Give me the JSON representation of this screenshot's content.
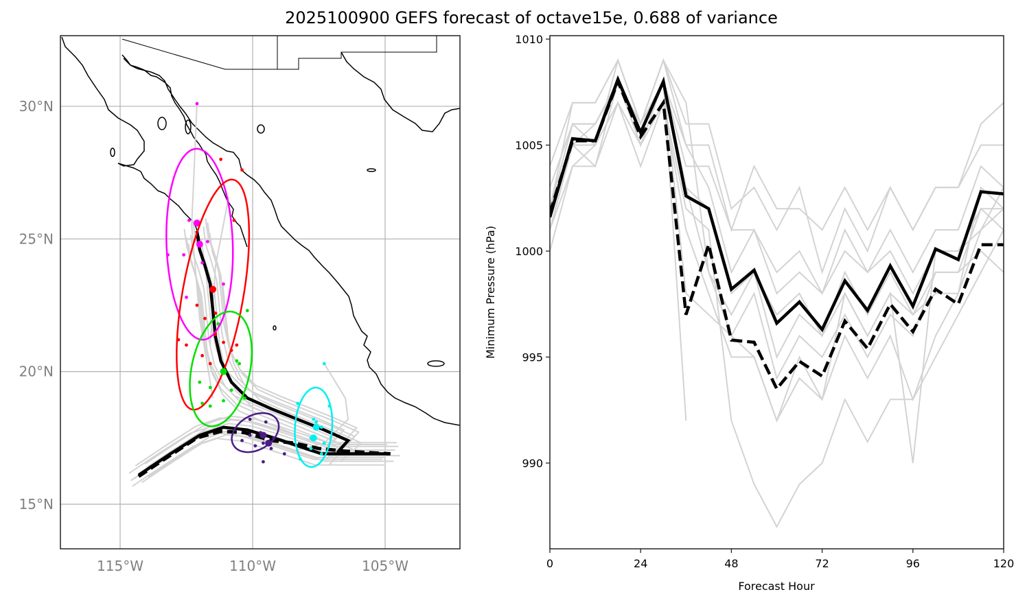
{
  "figure": {
    "title": "2025100900 GEFS forecast of octave15e, 0.688 of variance"
  },
  "colors": {
    "member_track": "#d3d3d3",
    "ensemble_mean": "#000000",
    "cluster_magenta": "#ff00ff",
    "cluster_red": "#ff0000",
    "cluster_green": "#00e000",
    "cluster_purple": "#4b1c86",
    "cluster_cyan": "#00f0f0",
    "gridline": "#b0b0b0",
    "geo_tick_label": "#808080",
    "coastline": "#000000"
  },
  "chart_data": [
    {
      "type": "map",
      "title": "",
      "lon_range": [
        -117.2,
        -102.2
      ],
      "lat_range": [
        13.3,
        32.6
      ],
      "grid": true,
      "lon_ticks": [
        -115,
        -110,
        -105
      ],
      "lon_tick_labels": [
        "115°W",
        "110°W",
        "105°W"
      ],
      "lat_ticks": [
        15,
        20,
        25,
        30
      ],
      "lat_tick_labels": [
        "15°N",
        "20°N",
        "25°N",
        "30°N"
      ],
      "mean_track_solid": [
        [
          -114.3,
          16.1
        ],
        [
          -113.1,
          16.9
        ],
        [
          -112.0,
          17.6
        ],
        [
          -111.1,
          17.9
        ],
        [
          -110.2,
          17.8
        ],
        [
          -109.2,
          17.5
        ],
        [
          -108.3,
          17.2
        ],
        [
          -107.4,
          16.9
        ],
        [
          -106.5,
          16.9
        ],
        [
          -105.7,
          16.9
        ],
        [
          -104.8,
          16.9
        ]
      ],
      "mean_track_dashed": [
        [
          -114.3,
          16.05
        ],
        [
          -113.1,
          16.85
        ],
        [
          -112.1,
          17.5
        ],
        [
          -111.2,
          17.75
        ],
        [
          -110.3,
          17.7
        ],
        [
          -109.3,
          17.4
        ],
        [
          -108.4,
          17.3
        ],
        [
          -107.5,
          17.1
        ],
        [
          -106.5,
          17.0
        ],
        [
          -105.7,
          16.95
        ],
        [
          -104.8,
          16.9
        ]
      ],
      "mean_track_north": [
        [
          -112.1,
          25.3
        ],
        [
          -112.0,
          24.6
        ],
        [
          -111.8,
          24.0
        ],
        [
          -111.6,
          23.3
        ],
        [
          -111.5,
          22.3
        ],
        [
          -111.4,
          21.3
        ],
        [
          -111.2,
          20.4
        ],
        [
          -110.8,
          19.6
        ],
        [
          -110.2,
          19.0
        ],
        [
          -109.3,
          18.6
        ],
        [
          -108.3,
          18.2
        ],
        [
          -107.3,
          17.8
        ],
        [
          -106.4,
          17.4
        ],
        [
          -106.8,
          16.95
        ]
      ],
      "clusters": [
        {
          "name": "magenta",
          "color_key": "cluster_magenta",
          "center": [
            -112.0,
            24.8
          ],
          "semi_axes_deg": [
            1.25,
            3.6
          ],
          "angle_deg": -2,
          "points": [
            [
              -113.2,
              24.4
            ],
            [
              -112.4,
              25.7
            ],
            [
              -111.7,
              24.9
            ],
            [
              -112.6,
              24.4
            ],
            [
              -112.5,
              22.8
            ],
            [
              -111.1,
              23.3
            ],
            [
              -111.9,
              24.1
            ],
            [
              -112.1,
              30.1
            ]
          ],
          "big_points": [
            [
              -112.1,
              25.6
            ],
            [
              -112.0,
              24.8
            ]
          ]
        },
        {
          "name": "red",
          "color_key": "cluster_red",
          "center": [
            -111.5,
            22.9
          ],
          "semi_axes_deg": [
            1.15,
            4.4
          ],
          "angle_deg": 10,
          "points": [
            [
              -111.2,
              28.0
            ],
            [
              -110.4,
              27.6
            ],
            [
              -110.7,
              25.7
            ],
            [
              -111.8,
              22.0
            ],
            [
              -112.1,
              22.5
            ],
            [
              -111.4,
              21.4
            ],
            [
              -111.9,
              20.6
            ],
            [
              -111.1,
              21.1
            ],
            [
              -110.8,
              20.8
            ],
            [
              -110.6,
              21.0
            ],
            [
              -112.5,
              21.0
            ],
            [
              -111.6,
              20.3
            ],
            [
              -112.8,
              21.2
            ],
            [
              -111.4,
              22.2
            ]
          ],
          "big_points": [
            [
              -111.5,
              23.1
            ]
          ]
        },
        {
          "name": "green",
          "color_key": "cluster_green",
          "center": [
            -111.2,
            20.1
          ],
          "semi_axes_deg": [
            1.1,
            2.2
          ],
          "angle_deg": 12,
          "points": [
            [
              -110.2,
              22.3
            ],
            [
              -111.3,
              21.8
            ],
            [
              -110.6,
              20.4
            ],
            [
              -110.5,
              20.3
            ],
            [
              -112.0,
              19.6
            ],
            [
              -111.6,
              19.4
            ],
            [
              -110.8,
              19.3
            ],
            [
              -110.3,
              19.0
            ],
            [
              -111.1,
              18.9
            ],
            [
              -111.6,
              18.7
            ],
            [
              -111.9,
              18.8
            ]
          ],
          "big_points": [
            [
              -111.1,
              20.0
            ]
          ]
        },
        {
          "name": "purple",
          "color_key": "cluster_purple",
          "center": [
            -109.9,
            17.7
          ],
          "semi_axes_deg": [
            0.95,
            0.65
          ],
          "angle_deg": -30,
          "points": [
            [
              -110.1,
              18.2
            ],
            [
              -109.5,
              18.1
            ],
            [
              -109.7,
              17.7
            ],
            [
              -109.2,
              17.5
            ],
            [
              -109.3,
              17.1
            ],
            [
              -110.1,
              17.6
            ],
            [
              -109.6,
              17.3
            ],
            [
              -109.9,
              17.2
            ],
            [
              -110.4,
              17.4
            ],
            [
              -108.8,
              16.9
            ],
            [
              -109.6,
              16.6
            ]
          ],
          "big_points": [
            [
              -109.6,
              17.6
            ],
            [
              -109.4,
              17.3
            ]
          ]
        },
        {
          "name": "cyan",
          "color_key": "cluster_cyan",
          "center": [
            -107.7,
            17.9
          ],
          "semi_axes_deg": [
            0.7,
            1.5
          ],
          "angle_deg": 4,
          "points": [
            [
              -107.3,
              20.3
            ],
            [
              -108.3,
              18.8
            ],
            [
              -107.1,
              18.7
            ],
            [
              -107.7,
              18.2
            ],
            [
              -107.6,
              18.1
            ],
            [
              -107.4,
              17.9
            ],
            [
              -107.8,
              17.5
            ],
            [
              -107.3,
              17.3
            ],
            [
              -107.8,
              17.1
            ],
            [
              -107.4,
              16.9
            ],
            [
              -108.2,
              16.7
            ]
          ],
          "big_points": [
            [
              -107.6,
              17.9
            ],
            [
              -107.7,
              17.5
            ]
          ]
        }
      ]
    },
    {
      "type": "line",
      "title": "",
      "xlabel": "Forecast Hour",
      "ylabel": "Minimum Pressure (hPa)",
      "xlim": [
        0,
        120
      ],
      "ylim": [
        986,
        1010.2
      ],
      "xticks": [
        0,
        24,
        48,
        72,
        96,
        120
      ],
      "yticks": [
        990,
        995,
        1000,
        1005,
        1010
      ],
      "x": [
        0,
        6,
        12,
        18,
        24,
        30,
        36,
        42,
        48,
        54,
        60,
        66,
        72,
        78,
        84,
        90,
        96,
        102,
        108,
        114,
        120
      ],
      "series": [
        {
          "name": "ensemble-mean-solid",
          "style": "solid",
          "values": [
            1001.6,
            1005.3,
            1005.2,
            1008.1,
            1005.6,
            1008.0,
            1002.6,
            1002.0,
            998.2,
            999.1,
            996.6,
            997.6,
            996.3,
            998.6,
            997.2,
            999.3,
            997.4,
            1000.1,
            999.6,
            1002.8,
            1002.7
          ]
        },
        {
          "name": "ensemble-mean-dashed",
          "style": "dashed",
          "values": [
            1001.8,
            1005.2,
            1005.2,
            1008.0,
            1005.4,
            1007.0,
            997.0,
            1000.3,
            995.8,
            995.7,
            993.5,
            994.8,
            994.1,
            996.7,
            995.4,
            997.5,
            996.2,
            998.2,
            997.5,
            1000.3,
            1000.3
          ]
        }
      ],
      "members": [
        [
          1000.0,
          1004.0,
          1004.0,
          1007.0,
          1005.0,
          1007.0,
          1002.0,
          1001.0,
          992.0,
          989.0,
          987.0,
          989.0,
          990.0,
          993.0,
          991.0,
          993.0,
          993.0,
          995.0,
          997.0,
          999.0,
          1001.0
        ],
        [
          1001.0,
          1005.0,
          1005.0,
          1009.0,
          1006.0,
          1009.0,
          1006.0,
          1006.0,
          1002.0,
          1003.0,
          1001.0,
          1003.0,
          999.0,
          1002.0,
          1000.0,
          1003.0,
          1001.0,
          1003.0,
          1003.0,
          1005.0,
          1005.0
        ],
        [
          1002.0,
          1007.0,
          1007.0,
          1009.0,
          1006.0,
          1009.0,
          1005.0,
          1005.0,
          1001.0,
          1004.0,
          1002.0,
          1002.0,
          1001.0,
          1003.0,
          1001.0,
          1003.0,
          1001.0,
          1003.0,
          1003.0,
          1006.0,
          1007.0
        ],
        [
          1003.0,
          1006.0,
          1005.0,
          1008.0,
          1006.0,
          1008.0,
          1004.0,
          1004.0,
          1001.0,
          1001.0,
          999.0,
          1000.0,
          998.0,
          1001.0,
          999.0,
          1001.0,
          999.0,
          1001.0,
          1001.0,
          1004.0,
          1003.0
        ],
        [
          1002.0,
          1006.0,
          1006.0,
          1008.0,
          1006.0,
          1008.0,
          1005.0,
          1003.0,
          999.0,
          1001.0,
          998.0,
          999.0,
          998.0,
          1000.0,
          999.0,
          1000.0,
          998.0,
          1000.0,
          1000.0,
          1002.0,
          1001.0
        ],
        [
          1004.0,
          1007.0,
          1007.0,
          1009.0,
          1006.0,
          1009.0,
          1007.0,
          999.0,
          997.0,
          999.0,
          995.0,
          997.0,
          996.0,
          998.0,
          996.0,
          998.0,
          997.0,
          998.0,
          998.0,
          1003.0,
          1002.0
        ],
        [
          1002.0,
          1005.0,
          1005.0,
          1008.0,
          1005.0,
          1008.0,
          1003.0,
          999.0,
          996.0,
          998.0,
          994.0,
          996.0,
          995.0,
          997.0,
          995.0,
          997.0,
          996.0,
          999.0,
          999.0,
          1000.0,
          999.0
        ],
        [
          1001.0,
          1004.0,
          1005.0,
          1007.0,
          1004.0,
          1007.0,
          1001.0,
          998.0,
          995.0,
          995.0,
          992.0,
          994.0,
          993.0,
          996.0,
          994.0,
          996.0,
          993.0,
          996.0,
          998.0,
          1001.0,
          1003.0
        ],
        [
          1002.0,
          1005.0,
          1006.0,
          1008.0,
          1005.0,
          1008.0,
          992.0,
          null,
          null,
          null,
          null,
          null,
          null,
          null,
          null,
          null,
          null,
          null,
          null,
          null,
          null
        ],
        [
          1001.0,
          1005.0,
          1004.0,
          1008.0,
          1005.0,
          1008.0,
          998.0,
          997.0,
          996.0,
          995.0,
          992.0,
          995.0,
          993.0,
          998.0,
          996.0,
          998.0,
          990.0,
          1000.0,
          1000.0,
          1001.0,
          1002.0
        ],
        [
          1002.0,
          1006.0,
          1006.0,
          1008.0,
          1005.0,
          1008.0,
          1003.0,
          1002.0,
          998.0,
          999.0,
          997.0,
          998.0,
          996.0,
          999.0,
          997.0,
          999.0,
          997.0,
          999.0,
          999.0,
          1002.0,
          1002.0
        ]
      ]
    }
  ]
}
